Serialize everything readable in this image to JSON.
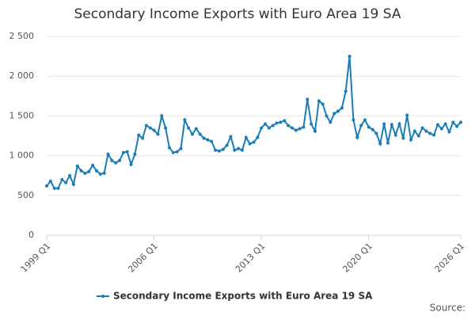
{
  "chart_data": {
    "type": "line",
    "title": "Secondary Income Exports with Euro Area 19 SA",
    "categories": [
      "1999 Q1",
      null,
      null,
      null,
      null,
      null,
      null,
      null,
      null,
      null,
      null,
      null,
      null,
      null,
      null,
      null,
      null,
      null,
      null,
      null,
      null,
      null,
      null,
      null,
      null,
      null,
      null,
      null,
      "2006 Q1",
      null,
      null,
      null,
      null,
      null,
      null,
      null,
      null,
      null,
      null,
      null,
      null,
      null,
      null,
      null,
      null,
      null,
      null,
      null,
      null,
      null,
      null,
      null,
      null,
      null,
      null,
      null,
      "2013 Q1",
      null,
      null,
      null,
      null,
      null,
      null,
      null,
      null,
      null,
      null,
      null,
      null,
      null,
      null,
      null,
      null,
      null,
      null,
      null,
      null,
      null,
      null,
      null,
      null,
      null,
      null,
      null,
      "2020 Q1",
      null,
      null,
      null,
      null,
      null,
      null,
      null,
      null,
      null,
      null,
      null,
      null,
      null,
      null,
      null,
      null,
      null,
      null,
      null,
      null,
      null,
      null,
      null,
      "2026 Q1"
    ],
    "series": [
      {
        "name": "Secondary Income Exports with Euro Area 19 SA",
        "color": "#1a7db6",
        "values": [
          620,
          680,
          590,
          590,
          700,
          660,
          750,
          640,
          870,
          810,
          780,
          800,
          880,
          810,
          770,
          780,
          1020,
          940,
          910,
          940,
          1040,
          1050,
          890,
          1020,
          1260,
          1220,
          1380,
          1350,
          1320,
          1270,
          1500,
          1350,
          1100,
          1040,
          1050,
          1090,
          1450,
          1350,
          1270,
          1340,
          1270,
          1220,
          1200,
          1180,
          1070,
          1060,
          1080,
          1130,
          1240,
          1070,
          1090,
          1070,
          1230,
          1150,
          1170,
          1230,
          1350,
          1400,
          1350,
          1380,
          1410,
          1420,
          1440,
          1380,
          1350,
          1320,
          1340,
          1360,
          1710,
          1400,
          1310,
          1690,
          1650,
          1500,
          1420,
          1530,
          1560,
          1600,
          1810,
          2250,
          1450,
          1230,
          1380,
          1450,
          1360,
          1330,
          1280,
          1150,
          1400,
          1160,
          1390,
          1260,
          1400,
          1220,
          1510,
          1200,
          1310,
          1250,
          1350,
          1310,
          1280,
          1260,
          1390,
          1340,
          1400,
          1300,
          1420,
          1370,
          1420
        ]
      }
    ],
    "ylim": [
      0,
      2500
    ],
    "yticks": [
      0,
      500,
      {
        "value": 1000,
        "label": "1 000"
      },
      {
        "value": 1500,
        "label": "1 500"
      },
      {
        "value": 2000,
        "label": "2 000"
      },
      {
        "value": 2500,
        "label": "2 500"
      }
    ],
    "grid": true,
    "legend": "bottom",
    "source_label": "Source:"
  }
}
